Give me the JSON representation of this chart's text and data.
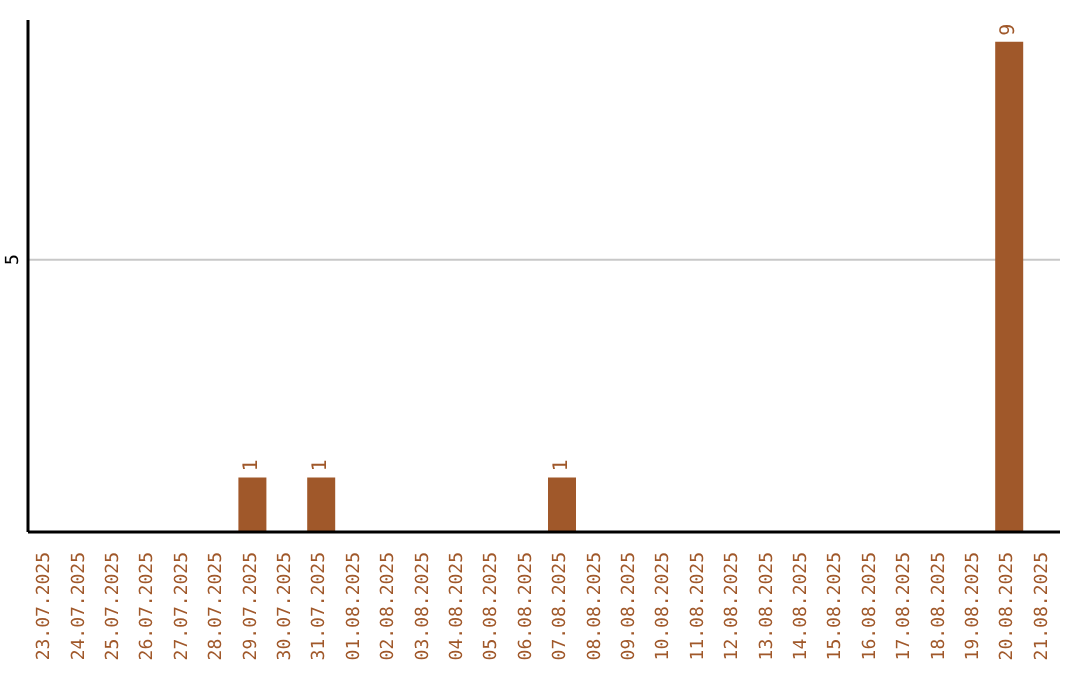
{
  "chart_data": {
    "type": "bar",
    "categories": [
      "23.07.2025",
      "24.07.2025",
      "25.07.2025",
      "26.07.2025",
      "27.07.2025",
      "28.07.2025",
      "29.07.2025",
      "30.07.2025",
      "31.07.2025",
      "01.08.2025",
      "02.08.2025",
      "03.08.2025",
      "04.08.2025",
      "05.08.2025",
      "06.08.2025",
      "07.08.2025",
      "08.08.2025",
      "09.08.2025",
      "10.08.2025",
      "11.08.2025",
      "12.08.2025",
      "13.08.2025",
      "14.08.2025",
      "15.08.2025",
      "16.08.2025",
      "17.08.2025",
      "18.08.2025",
      "19.08.2025",
      "20.08.2025",
      "21.08.2025"
    ],
    "values": [
      0,
      0,
      0,
      0,
      0,
      0,
      1,
      0,
      1,
      0,
      0,
      0,
      0,
      0,
      0,
      1,
      0,
      0,
      0,
      0,
      0,
      0,
      0,
      0,
      0,
      0,
      0,
      0,
      9,
      0
    ],
    "color": "#a0582a",
    "ylim": [
      0,
      9.4
    ],
    "yticks": [
      {
        "value": 0,
        "label": null
      },
      5
    ],
    "grid": "y",
    "value_labels": [
      null,
      null,
      null,
      null,
      null,
      null,
      "1",
      null,
      "1",
      null,
      null,
      null,
      null,
      null,
      null,
      "1",
      null,
      null,
      null,
      null,
      null,
      null,
      null,
      null,
      null,
      null,
      null,
      null,
      "9",
      null
    ]
  }
}
